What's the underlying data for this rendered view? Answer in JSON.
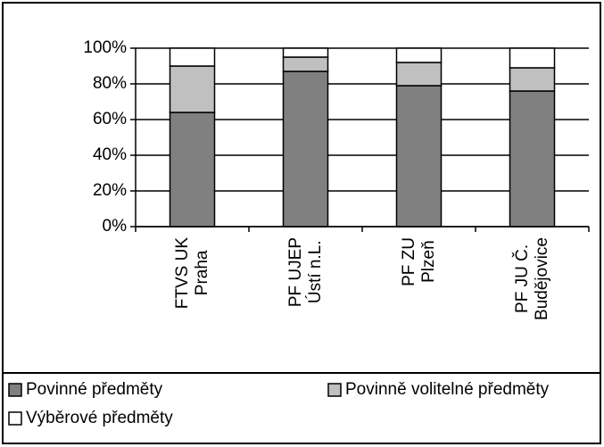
{
  "chart_data": {
    "type": "stacked_bar",
    "categories": [
      "FTVS UK\nPraha",
      "PF UJEP\nÚstí n.L.",
      "PF ZU\nPlzeň",
      "PF JU Č.\nBudějovice"
    ],
    "series": [
      {
        "name": "Povinné předměty",
        "color": "#808080",
        "values": [
          64,
          87,
          79,
          76
        ]
      },
      {
        "name": "Povinně volitelné předměty",
        "color": "#c0c0c0",
        "values": [
          26,
          8,
          13,
          13
        ]
      },
      {
        "name": "Výběrové předměty",
        "color": "#ffffff",
        "values": [
          10,
          5,
          8,
          11
        ]
      }
    ],
    "ylim": [
      0,
      100
    ],
    "yticks": [
      {
        "value": 0,
        "label": "0%"
      },
      {
        "value": 20,
        "label": "20%"
      },
      {
        "value": 40,
        "label": "40%"
      },
      {
        "value": 60,
        "label": "60%"
      },
      {
        "value": 80,
        "label": "80%"
      },
      {
        "value": 100,
        "label": "100%"
      }
    ],
    "grid": true,
    "legend": "bottom"
  }
}
